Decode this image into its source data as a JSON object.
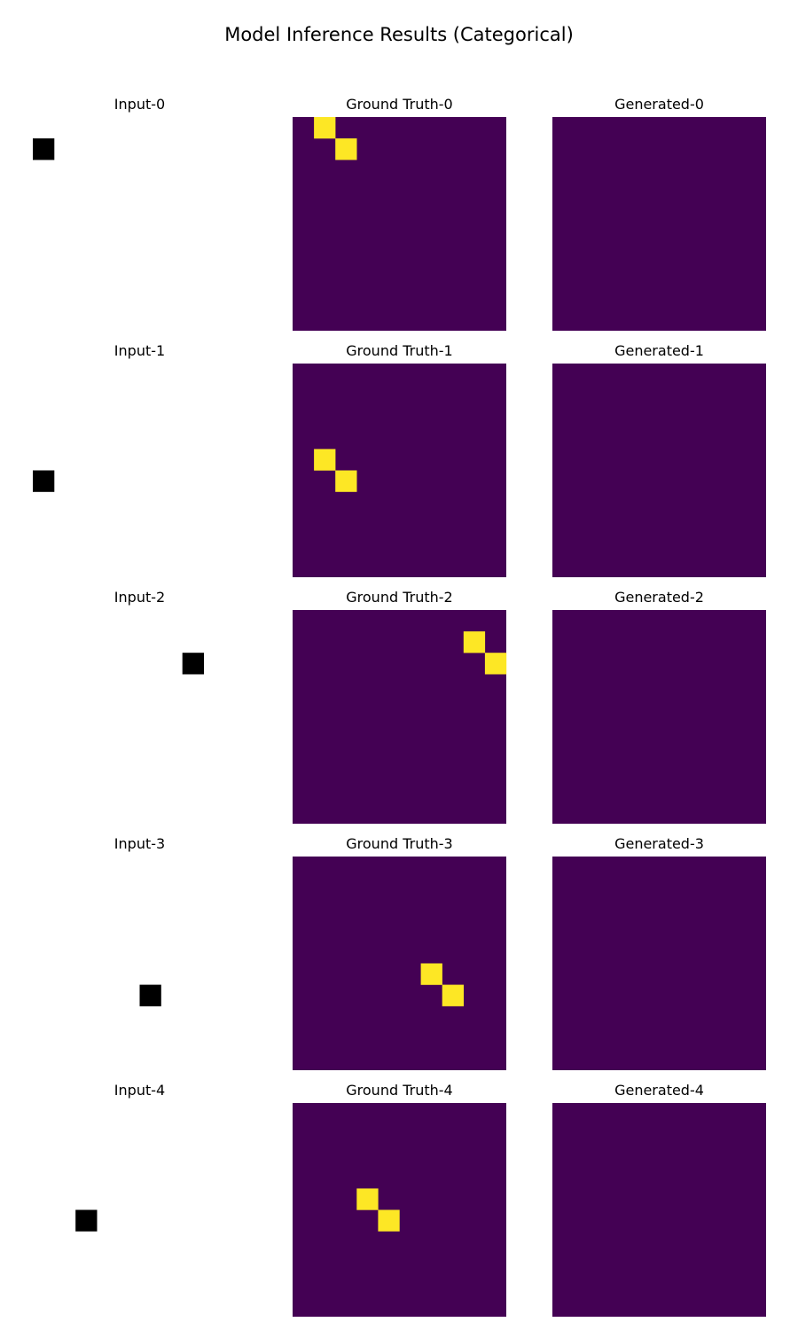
{
  "figure": {
    "title": "Model Inference Results (Categorical)"
  },
  "colors": {
    "background_cell": "#440154",
    "active_cell": "#fde725",
    "input_cell": "#000000",
    "input_background": "#ffffff"
  },
  "chart_data": {
    "type": "heatmap",
    "grid_size": 10,
    "columns": [
      "Input",
      "Ground Truth",
      "Generated"
    ],
    "rows": [
      {
        "input_title": "Input-0",
        "gt_title": "Ground Truth-0",
        "gen_title": "Generated-0",
        "input_cells": [
          [
            1,
            0
          ]
        ],
        "gt_cells": [
          [
            0,
            1
          ],
          [
            1,
            2
          ]
        ],
        "gen_cells": []
      },
      {
        "input_title": "Input-1",
        "gt_title": "Ground Truth-1",
        "gen_title": "Generated-1",
        "input_cells": [
          [
            5,
            0
          ]
        ],
        "gt_cells": [
          [
            4,
            1
          ],
          [
            5,
            2
          ]
        ],
        "gen_cells": []
      },
      {
        "input_title": "Input-2",
        "gt_title": "Ground Truth-2",
        "gen_title": "Generated-2",
        "input_cells": [
          [
            2,
            7
          ]
        ],
        "gt_cells": [
          [
            1,
            8
          ],
          [
            2,
            9
          ]
        ],
        "gen_cells": []
      },
      {
        "input_title": "Input-3",
        "gt_title": "Ground Truth-3",
        "gen_title": "Generated-3",
        "input_cells": [
          [
            6,
            5
          ]
        ],
        "gt_cells": [
          [
            5,
            6
          ],
          [
            6,
            7
          ]
        ],
        "gen_cells": []
      },
      {
        "input_title": "Input-4",
        "gt_title": "Ground Truth-4",
        "gen_title": "Generated-4",
        "input_cells": [
          [
            5,
            2
          ]
        ],
        "gt_cells": [
          [
            4,
            3
          ],
          [
            5,
            4
          ]
        ],
        "gen_cells": []
      }
    ]
  }
}
